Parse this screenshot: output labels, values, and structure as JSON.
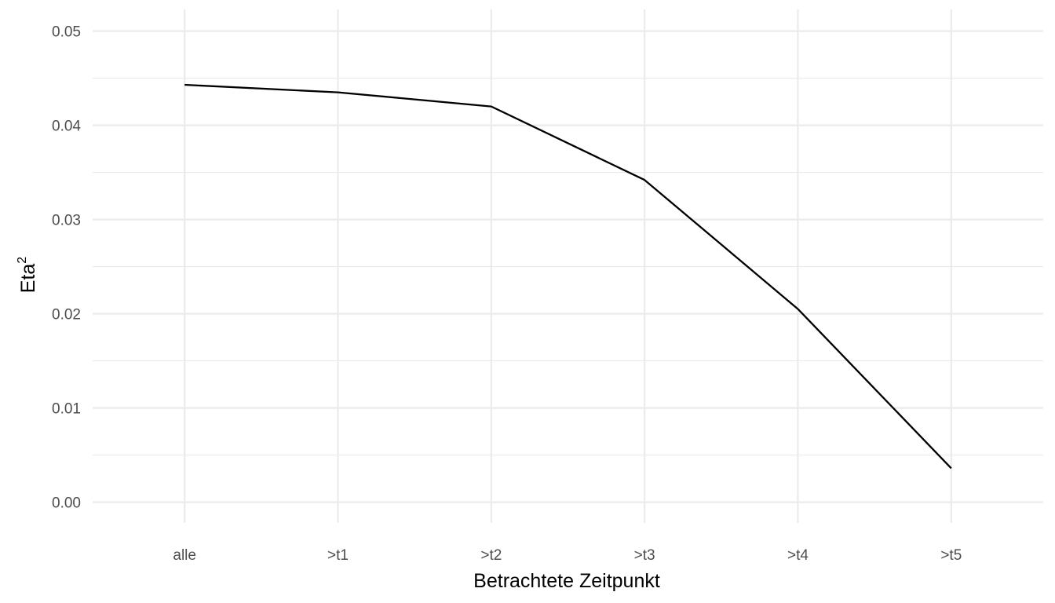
{
  "chart_data": {
    "type": "line",
    "title": "",
    "xlabel": "Betrachtete Zeitpunkt",
    "ylabel_base": "Eta",
    "ylabel_superscript": "2",
    "categories": [
      "alle",
      ">t1",
      ">t2",
      ">t3",
      ">t4",
      ">t5"
    ],
    "series": [
      {
        "values": [
          0.0443,
          0.0435,
          0.042,
          0.0342,
          0.0205,
          0.0036
        ]
      }
    ],
    "ylim": [
      -0.0022,
      0.0523
    ],
    "yticks": [
      0.0,
      0.01,
      0.02,
      0.03,
      0.04,
      0.05
    ],
    "ytick_labels": [
      "0.00",
      "0.01",
      "0.02",
      "0.03",
      "0.04",
      "0.05"
    ],
    "grid": true,
    "line_color": "#000000",
    "grid_color": "#ebebeb"
  }
}
